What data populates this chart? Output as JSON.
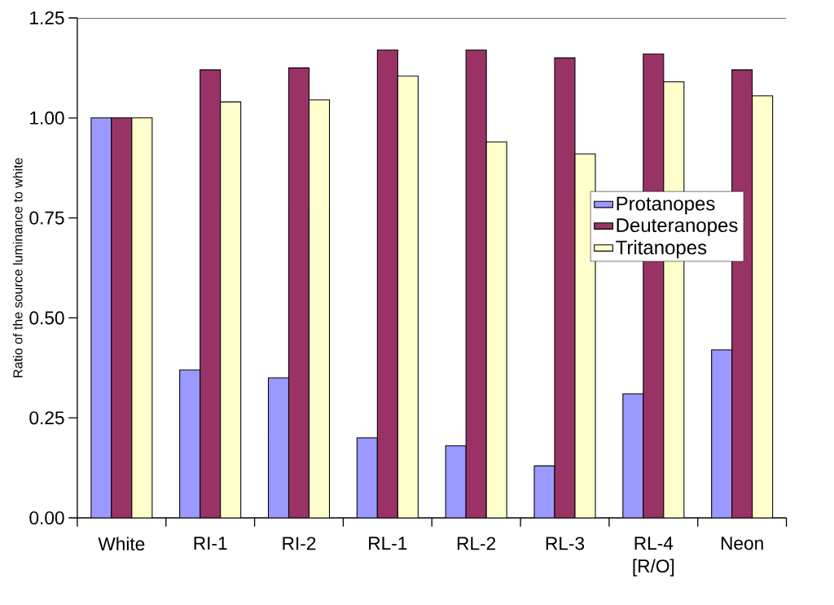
{
  "chart_data": {
    "type": "bar",
    "ylabel": "Ratio of the source luminance to white",
    "categories": [
      "White",
      "RI-1",
      "RI-2",
      "RL-1",
      "RL-2",
      "RL-3",
      "RL-4 [R/O]",
      "Neon"
    ],
    "series": [
      {
        "name": "Protanopes",
        "color": "#9999ff",
        "values": [
          1.0,
          0.37,
          0.35,
          0.2,
          0.18,
          0.13,
          0.31,
          0.42
        ]
      },
      {
        "name": "Deuteranopes",
        "color": "#993366",
        "values": [
          1.0,
          1.12,
          1.125,
          1.17,
          1.17,
          1.15,
          1.16,
          1.12
        ]
      },
      {
        "name": "Tritanopes",
        "color": "#ffffcc",
        "values": [
          1.0,
          1.04,
          1.045,
          1.105,
          0.94,
          0.91,
          1.09,
          1.055
        ]
      }
    ],
    "ylim": [
      0,
      1.25
    ],
    "yticks": [
      {
        "value": 0,
        "label": "0.00"
      },
      {
        "value": 0.25,
        "label": "0.25"
      },
      {
        "value": 0.5,
        "label": "0.50"
      },
      {
        "value": 0.75,
        "label": "0.75"
      },
      {
        "value": 1,
        "label": "1.00"
      },
      {
        "value": 1.25,
        "label": "1.25"
      }
    ],
    "legend": "right",
    "grid": false
  }
}
